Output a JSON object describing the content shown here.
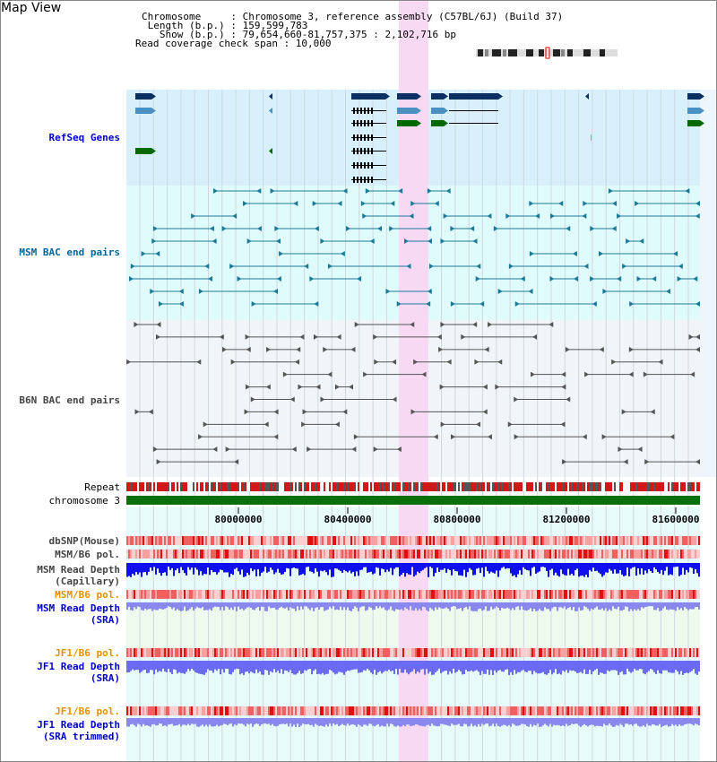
{
  "header": {
    "title": "Map View",
    "info": [
      "Chromosome     : Chromosome 3, reference assembly (C57BL/6J) (Build 37)",
      " Length (b.p.) : 159,599,783",
      "   Show (b.p.) : 79,654,660-81,757,375 : 2,102,716 bp",
      "Read coverage check span : 10,000"
    ]
  },
  "tracks": {
    "refseq": {
      "label": "RefSeq Genes",
      "color": "#0000cc"
    },
    "msm_bac": {
      "label": "MSM BAC end pairs",
      "color": "#006699"
    },
    "b6n_bac": {
      "label": "B6N BAC end pairs",
      "color": "#444444"
    },
    "repeat": {
      "label": "Repeat"
    },
    "chromosome": {
      "label": "chromosome 3"
    },
    "dbsnp": {
      "label": "dbSNP(Mouse)"
    },
    "msm_b6_pol_1": {
      "label": "MSM/B6 pol."
    },
    "msm_depth_cap": {
      "label1": "MSM Read Depth",
      "label2": "(Capillary)"
    },
    "msm_b6_pol_2": {
      "label": "MSM/B6 pol."
    },
    "msm_depth_sra": {
      "label1": "MSM Read Depth",
      "label2": "(SRA)"
    },
    "jf1_b6_pol_1": {
      "label": "JF1/B6 pol."
    },
    "jf1_depth_sra": {
      "label1": "JF1 Read Depth",
      "label2": "(SRA)"
    },
    "jf1_b6_pol_2": {
      "label": "JF1/B6 pol."
    },
    "jf1_depth_trim": {
      "label1": "JF1 Read Depth",
      "label2": "(SRA trimmed)"
    }
  },
  "axis": {
    "ticks": [
      "80000000",
      "80400000",
      "80800000",
      "81200000",
      "81600000"
    ]
  },
  "colors": {
    "refseq_bg": "#d7f0fb",
    "msm_bg": "#e0fbfb",
    "b6n_bg": "#f1f4f9",
    "highlight": "#f7d9f3",
    "refseq_dark": "#0b2e63",
    "refseq_mid": "#4a90c2",
    "refseq_green": "#006a00",
    "label_blue": "#0000cc",
    "label_teal": "#006699",
    "label_orange": "#e69000"
  }
}
